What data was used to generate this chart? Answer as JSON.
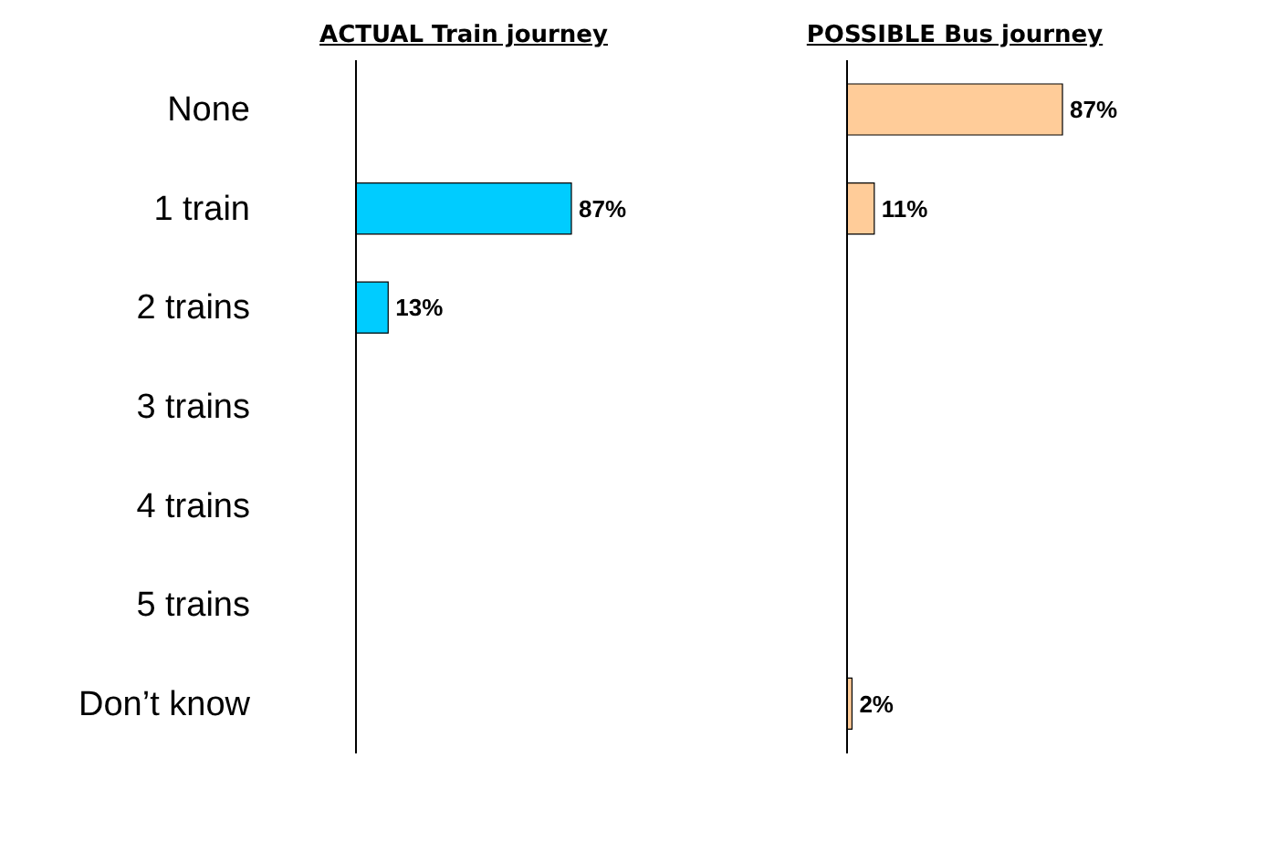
{
  "chart_data": [
    {
      "type": "bar",
      "orientation": "horizontal",
      "title": "ACTUAL Train journey",
      "categories": [
        "None",
        "1 train",
        "2 trains",
        "3 trains",
        "4 trains",
        "5 trains",
        "Don’t know"
      ],
      "values": [
        0,
        87,
        13,
        0,
        0,
        0,
        0
      ],
      "color": "#00ccff",
      "value_labels": [
        null,
        "87%",
        "13%",
        null,
        null,
        null,
        null
      ],
      "tick_labels": "y",
      "grid": false,
      "legend": false
    },
    {
      "type": "bar",
      "orientation": "horizontal",
      "title": "POSSIBLE Bus journey",
      "values": [
        87,
        11,
        0,
        0,
        0,
        0,
        2
      ],
      "color": "#ffcc99",
      "value_labels": [
        "87%",
        "11%",
        null,
        null,
        null,
        null,
        "2%"
      ],
      "tick_labels": false,
      "grid": false,
      "legend": false
    }
  ]
}
